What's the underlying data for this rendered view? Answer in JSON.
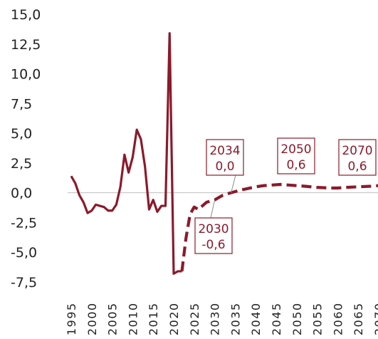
{
  "chart_data": {
    "type": "line",
    "title": "",
    "xlabel": "",
    "ylabel": "",
    "xlim": [
      1995,
      2070
    ],
    "ylim": [
      -7.5,
      15.0
    ],
    "grid": false,
    "legend": "none",
    "color": "#8b1a2b",
    "y_ticks": [
      "15,0",
      "12,5",
      "10,0",
      "7,5",
      "5,0",
      "2,5",
      "0,0",
      "-2,5",
      "-5,0",
      "-7,5"
    ],
    "y_tick_values": [
      15.0,
      12.5,
      10.0,
      7.5,
      5.0,
      2.5,
      0.0,
      -2.5,
      -5.0,
      -7.5
    ],
    "x_ticks": [
      "1995",
      "2000",
      "2005",
      "2010",
      "2015",
      "2020",
      "2025",
      "2030",
      "2035",
      "2040",
      "2045",
      "2050",
      "2055",
      "2060",
      "2065",
      "2070"
    ],
    "x_tick_values": [
      1995,
      2000,
      2005,
      2010,
      2015,
      2020,
      2025,
      2030,
      2035,
      2040,
      2045,
      2050,
      2055,
      2060,
      2065,
      2070
    ],
    "series": [
      {
        "style": "solid",
        "x": [
          1995,
          1996,
          1997,
          1998,
          1999,
          2000,
          2001,
          2002,
          2003,
          2004,
          2005,
          2006,
          2007,
          2008,
          2009,
          2010,
          2011,
          2012,
          2013,
          2014,
          2015,
          2016,
          2017,
          2018,
          2019,
          2020,
          2021,
          2022
        ],
        "y": [
          1.4,
          0.8,
          -0.2,
          -0.8,
          -1.7,
          -1.5,
          -1.0,
          -1.1,
          -1.2,
          -1.5,
          -1.5,
          -1.0,
          0.5,
          3.2,
          1.7,
          3.0,
          5.3,
          4.5,
          2.2,
          -1.4,
          -0.6,
          -1.6,
          -1.1,
          -1.1,
          13.4,
          -6.8,
          -6.6,
          -6.6
        ]
      },
      {
        "style": "dashed",
        "x": [
          2022,
          2023,
          2024,
          2025,
          2026,
          2027,
          2028,
          2029,
          2030,
          2031,
          2032,
          2034,
          2036,
          2038,
          2040,
          2042,
          2044,
          2046,
          2048,
          2050,
          2052,
          2055,
          2058,
          2060,
          2062,
          2065,
          2068,
          2070
        ],
        "y": [
          -6.6,
          -3.8,
          -1.8,
          -1.2,
          -1.4,
          -1.1,
          -0.8,
          -0.7,
          -0.6,
          -0.4,
          -0.2,
          0.0,
          0.2,
          0.35,
          0.5,
          0.6,
          0.65,
          0.7,
          0.65,
          0.6,
          0.55,
          0.45,
          0.4,
          0.4,
          0.45,
          0.5,
          0.55,
          0.6
        ]
      }
    ],
    "annotations": [
      {
        "x": 2034,
        "y": 0.0,
        "year": "2034",
        "value": "0,0"
      },
      {
        "x": 2050,
        "y": 0.6,
        "year": "2050",
        "value": "0,6"
      },
      {
        "x": 2070,
        "y": 0.6,
        "year": "2070",
        "value": "0,6"
      },
      {
        "x": 2030,
        "y": -0.6,
        "year": "2030",
        "value": "-0,6"
      }
    ]
  }
}
